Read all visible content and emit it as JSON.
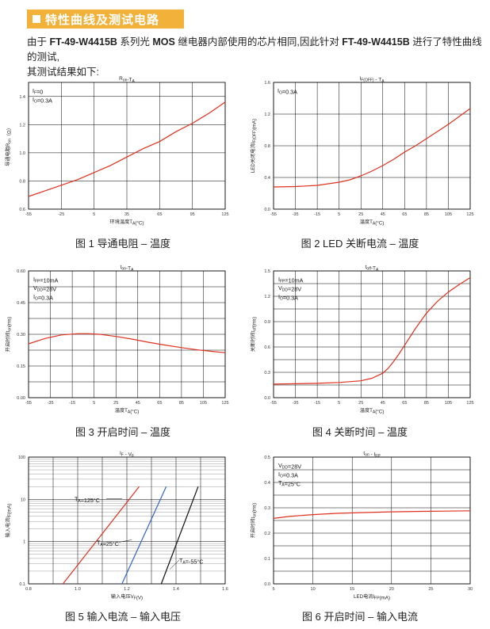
{
  "section": {
    "title": "特性曲线及测试电路"
  },
  "intro": {
    "p1": "由于 ",
    "product1": "FT-49-W4415B",
    "p2": " 系列光 ",
    "mos": "MOS",
    "p3": " 继电器内部使用的芯片相同,因此针对 ",
    "product2": "FT-49-W4415B",
    "p4": " 进行了特性曲线的测试,",
    "p5": "其测试结果如下:"
  },
  "chart_data": [
    {
      "id": "ron-ta",
      "type": "line",
      "title": "Ron-TA",
      "ylabel": "导通电阻Ron（Ω）",
      "xlabel": "环境温度TA(°C)",
      "xlim": [
        -55,
        125
      ],
      "ylim": [
        0.6,
        1.5
      ],
      "xticks": [
        -55,
        -25,
        5,
        35,
        65,
        95,
        125
      ],
      "xtick_labels": [
        "-55",
        "-25",
        "5",
        "35",
        "65",
        "95",
        "125"
      ],
      "yticks": [
        0.6,
        0.8,
        1.0,
        1.2,
        1.4
      ],
      "ytick_labels": [
        "0.6",
        "0.8",
        "1.0",
        "1.2",
        "1.4"
      ],
      "vgrid": [
        -55,
        -25,
        5,
        35,
        65,
        95,
        125
      ],
      "hgrid": [
        0.6,
        0.8,
        1.0,
        1.2,
        1.4
      ],
      "annotations": [
        "IF=0",
        "IO=0.3A"
      ],
      "series": [
        {
          "color": "#e0301e",
          "x": [
            -55,
            -40,
            -25,
            -10,
            5,
            20,
            35,
            50,
            65,
            80,
            95,
            110,
            125
          ],
          "y": [
            0.69,
            0.73,
            0.77,
            0.81,
            0.86,
            0.91,
            0.97,
            1.03,
            1.08,
            1.15,
            1.21,
            1.28,
            1.36
          ]
        }
      ],
      "caption": "图 1 导通电阻 – 温度"
    },
    {
      "id": "if-off-ta",
      "type": "line",
      "title": "IF(OFF) - TA",
      "ylabel": "LED关闭电流IF(OFF)(mA)",
      "xlabel": "温度TA(°C)",
      "xlim": [
        -55,
        125
      ],
      "ylim": [
        0.0,
        1.6
      ],
      "xticks": [
        -55,
        -35,
        -15,
        5,
        25,
        45,
        65,
        85,
        105,
        125
      ],
      "xtick_labels": [
        "-55",
        "-35",
        "-15",
        "5",
        "25",
        "45",
        "65",
        "85",
        "105",
        "125"
      ],
      "yticks": [
        0.0,
        0.4,
        0.8,
        1.2,
        1.6
      ],
      "ytick_labels": [
        "0.0",
        "0.4",
        "0.8",
        "1.2",
        "1.6"
      ],
      "vgrid": [
        -55,
        -35,
        -15,
        5,
        25,
        45,
        65,
        85,
        105,
        125
      ],
      "hgrid": [
        0.0,
        0.4,
        0.8,
        1.2,
        1.6
      ],
      "annotations": [
        "IO=0.3A"
      ],
      "series": [
        {
          "color": "#e0301e",
          "x": [
            -55,
            -35,
            -15,
            5,
            15,
            25,
            35,
            45,
            55,
            65,
            75,
            85,
            95,
            105,
            115,
            125
          ],
          "y": [
            0.28,
            0.285,
            0.3,
            0.34,
            0.37,
            0.42,
            0.48,
            0.55,
            0.63,
            0.72,
            0.8,
            0.89,
            0.98,
            1.07,
            1.17,
            1.27
          ]
        }
      ],
      "caption": "图 2 LED 关断电流 – 温度"
    },
    {
      "id": "ton-ta",
      "type": "line",
      "title": "ton-TA",
      "ylabel": "开启时间ton(ms)",
      "xlabel": "温度TA(°C)",
      "xlim": [
        -55,
        125
      ],
      "ylim": [
        0.0,
        0.6
      ],
      "xticks": [
        -55,
        -35,
        -15,
        5,
        25,
        45,
        65,
        85,
        105,
        125
      ],
      "xtick_labels": [
        "-55",
        "-35",
        "-15",
        "5",
        "25",
        "45",
        "65",
        "85",
        "105",
        "125"
      ],
      "yticks": [
        0.0,
        0.15,
        0.3,
        0.45,
        0.6
      ],
      "ytick_labels": [
        "0.00",
        "0.15",
        "0.30",
        "0.45",
        "0.60"
      ],
      "vgrid": [
        -55,
        -35,
        -15,
        5,
        25,
        45,
        65,
        85,
        105,
        125
      ],
      "hgrid": [
        0.0,
        0.075,
        0.15,
        0.225,
        0.3,
        0.375,
        0.45,
        0.525,
        0.6
      ],
      "annotations": [
        "IFP=10mA",
        "VDD=28V",
        "IO=0.3A"
      ],
      "series": [
        {
          "color": "#e0301e",
          "x": [
            -55,
            -40,
            -25,
            -10,
            0,
            10,
            25,
            40,
            55,
            70,
            85,
            100,
            115,
            125
          ],
          "y": [
            0.255,
            0.28,
            0.297,
            0.303,
            0.303,
            0.3,
            0.29,
            0.277,
            0.262,
            0.249,
            0.237,
            0.226,
            0.218,
            0.213
          ]
        }
      ],
      "caption": "图 3 开启时间 – 温度"
    },
    {
      "id": "toff-ta",
      "type": "line",
      "title": "toff-TA",
      "ylabel": "关断时间toff(ms)",
      "xlabel": "温度TA(°C)",
      "xlim": [
        -55,
        125
      ],
      "ylim": [
        0.0,
        1.5
      ],
      "xticks": [
        -55,
        -35,
        -15,
        5,
        25,
        45,
        65,
        85,
        105,
        125
      ],
      "xtick_labels": [
        "-55",
        "-35",
        "-15",
        "5",
        "25",
        "45",
        "65",
        "85",
        "105",
        "125"
      ],
      "yticks": [
        0.0,
        0.3,
        0.6,
        0.9,
        1.2,
        1.5
      ],
      "ytick_labels": [
        "0.0",
        "0.3",
        "0.6",
        "0.9",
        "1.2",
        "1.5"
      ],
      "vgrid": [
        -55,
        -35,
        -15,
        5,
        25,
        45,
        65,
        85,
        105,
        125
      ],
      "hgrid": [
        0.0,
        0.15,
        0.3,
        0.45,
        0.6,
        0.75,
        0.9,
        1.05,
        1.2,
        1.35,
        1.5
      ],
      "annotations": [
        "IFP=10mA",
        "VDD=28V",
        "IO=0.3A"
      ],
      "series": [
        {
          "color": "#e0301e",
          "x": [
            -55,
            -35,
            -15,
            5,
            25,
            35,
            45,
            50,
            55,
            60,
            65,
            75,
            85,
            95,
            105,
            115,
            125
          ],
          "y": [
            0.16,
            0.165,
            0.17,
            0.18,
            0.2,
            0.23,
            0.29,
            0.35,
            0.43,
            0.52,
            0.62,
            0.82,
            1.0,
            1.14,
            1.25,
            1.34,
            1.42
          ]
        }
      ],
      "caption": "图 4 关断时间 – 温度"
    },
    {
      "id": "if-vf",
      "type": "line",
      "title": "IF - VF",
      "ylabel": "输入电流IF(mA)",
      "xlabel": "输入电压VF(V)",
      "xlim": [
        0.8,
        1.6
      ],
      "ylim": [
        0.1,
        100
      ],
      "yscale": "log",
      "xticks": [
        0.8,
        1.0,
        1.2,
        1.4,
        1.6
      ],
      "xtick_labels": [
        "0.8",
        "1.0",
        "1.2",
        "1.4",
        "1.6"
      ],
      "yticks": [
        0.1,
        1,
        10,
        100
      ],
      "ytick_labels": [
        "0.1",
        "1",
        "10",
        "100"
      ],
      "vgrid": [
        0.8,
        0.9,
        1.0,
        1.1,
        1.2,
        1.3,
        1.4,
        1.5,
        1.6
      ],
      "hgrid": [
        0.1,
        1,
        10,
        100
      ],
      "annotations": [
        "TA=125°C",
        "TA=25°C",
        "TA=-55°C"
      ],
      "series": [
        {
          "name": "TA=125°C",
          "color": "#e0301e",
          "x": [
            0.94,
            1.25
          ],
          "y": [
            0.1,
            20
          ]
        },
        {
          "name": "TA=25°C",
          "color": "#2f63c8",
          "x": [
            1.18,
            1.36
          ],
          "y": [
            0.1,
            20
          ]
        },
        {
          "name": "TA=-55°C",
          "color": "#111111",
          "x": [
            1.34,
            1.49
          ],
          "y": [
            0.1,
            20
          ]
        }
      ],
      "caption": "图 5 输入电流 – 输入电压"
    },
    {
      "id": "ton-ifp",
      "type": "line",
      "title": "ton - IFP",
      "ylabel": "开启时间ton(ms)",
      "xlabel": "LED电流IFP(mA)",
      "xlim": [
        5,
        30
      ],
      "ylim": [
        0.0,
        0.5
      ],
      "xticks": [
        5,
        10,
        15,
        20,
        25,
        30
      ],
      "xtick_labels": [
        "5",
        "10",
        "15",
        "20",
        "25",
        "30"
      ],
      "yticks": [
        0.0,
        0.1,
        0.2,
        0.3,
        0.4,
        0.5
      ],
      "ytick_labels": [
        "0.0",
        "0.1",
        "0.2",
        "0.3",
        "0.4",
        "0.5"
      ],
      "vgrid": [
        5,
        10,
        15,
        20,
        25,
        30
      ],
      "hgrid": [
        0.0,
        0.05,
        0.1,
        0.15,
        0.2,
        0.25,
        0.3,
        0.35,
        0.4,
        0.45,
        0.5
      ],
      "annotations": [
        "VDD=28V",
        "IO=0.3A",
        "TA=25°C"
      ],
      "series": [
        {
          "color": "#e0301e",
          "x": [
            5,
            7,
            10,
            13,
            16,
            20,
            24,
            27,
            30
          ],
          "y": [
            0.258,
            0.266,
            0.273,
            0.278,
            0.281,
            0.284,
            0.286,
            0.287,
            0.288
          ]
        }
      ],
      "caption": "图 6 开启时间 – 输入电流"
    }
  ]
}
